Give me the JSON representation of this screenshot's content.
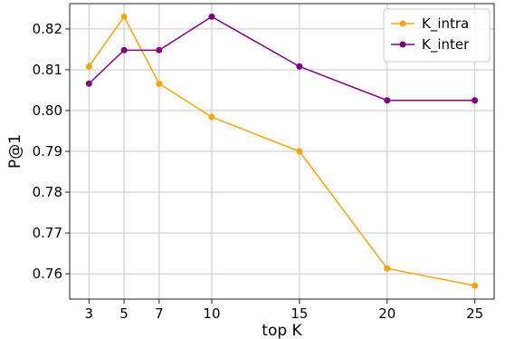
{
  "chart_data": {
    "type": "line",
    "title": "",
    "xlabel": "top K",
    "ylabel": "P@1",
    "x": [
      3,
      5,
      7,
      10,
      15,
      20,
      25
    ],
    "xticks": [
      "3",
      "5",
      "7",
      "10",
      "15",
      "20",
      "25"
    ],
    "yticks": [
      "0.76",
      "0.77",
      "0.78",
      "0.79",
      "0.80",
      "0.81",
      "0.82"
    ],
    "xlim": [
      1.9,
      26.1
    ],
    "ylim": [
      0.7538,
      0.8262
    ],
    "grid": true,
    "legend_position": "top-right",
    "series": [
      {
        "name": "K_intra",
        "color": "#FFA500",
        "values": [
          0.8108,
          0.823,
          0.8066,
          0.7984,
          0.79,
          0.7613,
          0.7571
        ]
      },
      {
        "name": "K_inter",
        "color": "#800080",
        "values": [
          0.8066,
          0.8148,
          0.8148,
          0.823,
          0.8108,
          0.8025,
          0.8025
        ]
      }
    ]
  }
}
